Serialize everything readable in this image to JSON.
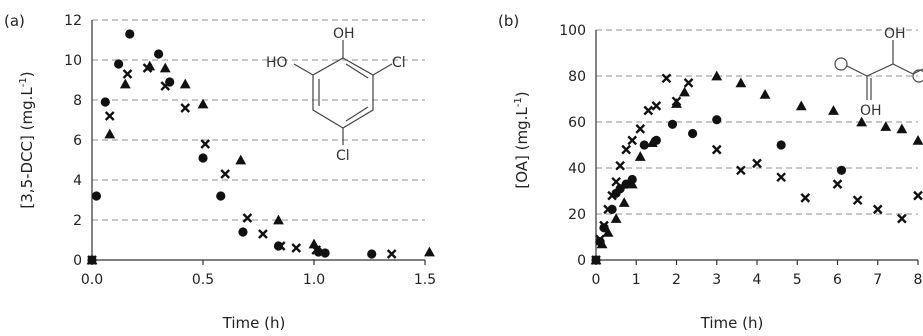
{
  "chart_data": [
    {
      "type": "scatter",
      "panel_label": "(a)",
      "xlabel": "Time (h)",
      "ylabel": "[3,5-DCC] (mg.L⁻¹)",
      "ylabel_main": "[3,5-DCC] (mg.L",
      "ylabel_sup": "-1",
      "ylabel_close": ")",
      "xlim": [
        0,
        1.5
      ],
      "ylim": [
        0,
        12
      ],
      "x_ticks": [
        "0.0",
        "0.5",
        "1.0",
        "1.5"
      ],
      "y_ticks": [
        "0",
        "2",
        "4",
        "6",
        "8",
        "10",
        "12"
      ],
      "grid": "horizontal-dashed",
      "molecule_labels": [
        "OH",
        "HO",
        "Cl",
        "Cl"
      ],
      "series": [
        {
          "marker": "circle",
          "points": [
            [
              0,
              0
            ],
            [
              0.02,
              3.2
            ],
            [
              0.06,
              7.9
            ],
            [
              0.12,
              9.8
            ],
            [
              0.17,
              11.3
            ],
            [
              0.3,
              10.3
            ],
            [
              0.35,
              8.9
            ],
            [
              0.5,
              5.1
            ],
            [
              0.58,
              3.2
            ],
            [
              0.68,
              1.4
            ],
            [
              0.84,
              0.7
            ],
            [
              1.02,
              0.4
            ],
            [
              1.05,
              0.35
            ],
            [
              1.26,
              0.3
            ]
          ]
        },
        {
          "marker": "cross",
          "points": [
            [
              0,
              0
            ],
            [
              0.08,
              7.2
            ],
            [
              0.16,
              9.3
            ],
            [
              0.25,
              9.6
            ],
            [
              0.33,
              8.7
            ],
            [
              0.42,
              7.6
            ],
            [
              0.51,
              5.8
            ],
            [
              0.6,
              4.3
            ],
            [
              0.7,
              2.1
            ],
            [
              0.77,
              1.3
            ],
            [
              0.85,
              0.7
            ],
            [
              0.92,
              0.6
            ],
            [
              1.01,
              0.5
            ],
            [
              1.35,
              0.3
            ]
          ]
        },
        {
          "marker": "triangle",
          "points": [
            [
              0,
              0
            ],
            [
              0.08,
              6.3
            ],
            [
              0.15,
              8.8
            ],
            [
              0.26,
              9.7
            ],
            [
              0.33,
              9.6
            ],
            [
              0.42,
              8.8
            ],
            [
              0.5,
              7.8
            ],
            [
              0.67,
              5.0
            ],
            [
              0.84,
              2.0
            ],
            [
              1.0,
              0.8
            ],
            [
              1.52,
              0.4
            ]
          ]
        }
      ]
    },
    {
      "type": "scatter",
      "panel_label": "(b)",
      "xlabel": "Time (h)",
      "ylabel": "[OA] (mg.L⁻¹)",
      "ylabel_main": "[OA] (mg.L",
      "ylabel_sup": "-1",
      "ylabel_close": ")",
      "xlim": [
        0,
        8
      ],
      "ylim": [
        0,
        100
      ],
      "x_ticks": [
        "0",
        "1",
        "2",
        "3",
        "4",
        "5",
        "6",
        "7",
        "8"
      ],
      "y_ticks": [
        "0",
        "20",
        "40",
        "60",
        "80",
        "100"
      ],
      "grid": "horizontal-dashed",
      "molecule_labels": [
        "OH",
        "OH"
      ],
      "series": [
        {
          "marker": "circle",
          "points": [
            [
              0,
              0
            ],
            [
              0.1,
              8
            ],
            [
              0.2,
              14
            ],
            [
              0.4,
              22
            ],
            [
              0.5,
              29
            ],
            [
              0.6,
              31
            ],
            [
              0.75,
              33
            ],
            [
              0.9,
              35
            ],
            [
              1.2,
              50
            ],
            [
              1.5,
              52
            ],
            [
              1.9,
              59
            ],
            [
              2.4,
              55
            ],
            [
              3.0,
              61
            ],
            [
              4.6,
              50
            ],
            [
              6.1,
              39
            ]
          ]
        },
        {
          "marker": "cross",
          "points": [
            [
              0,
              0
            ],
            [
              0.1,
              9
            ],
            [
              0.2,
              15
            ],
            [
              0.3,
              22
            ],
            [
              0.4,
              28
            ],
            [
              0.5,
              34
            ],
            [
              0.6,
              41
            ],
            [
              0.75,
              48
            ],
            [
              0.9,
              52
            ],
            [
              1.1,
              57
            ],
            [
              1.3,
              65
            ],
            [
              1.5,
              67
            ],
            [
              1.75,
              79
            ],
            [
              2.0,
              69
            ],
            [
              2.3,
              77
            ],
            [
              3.0,
              48
            ],
            [
              3.6,
              39
            ],
            [
              4.0,
              42
            ],
            [
              4.6,
              36
            ],
            [
              5.2,
              27
            ],
            [
              6.0,
              33
            ],
            [
              6.5,
              26
            ],
            [
              7.0,
              22
            ],
            [
              7.6,
              18
            ],
            [
              8.0,
              28
            ]
          ]
        },
        {
          "marker": "triangle",
          "points": [
            [
              0,
              0
            ],
            [
              0.15,
              7
            ],
            [
              0.3,
              12
            ],
            [
              0.5,
              18
            ],
            [
              0.7,
              25
            ],
            [
              0.9,
              33
            ],
            [
              1.1,
              45
            ],
            [
              1.4,
              51
            ],
            [
              2.0,
              68
            ],
            [
              2.2,
              73
            ],
            [
              3.0,
              80
            ],
            [
              3.6,
              77
            ],
            [
              4.2,
              72
            ],
            [
              5.1,
              67
            ],
            [
              5.9,
              65
            ],
            [
              6.6,
              60
            ],
            [
              7.2,
              58
            ],
            [
              7.6,
              57
            ],
            [
              8.0,
              52
            ]
          ]
        }
      ]
    }
  ]
}
